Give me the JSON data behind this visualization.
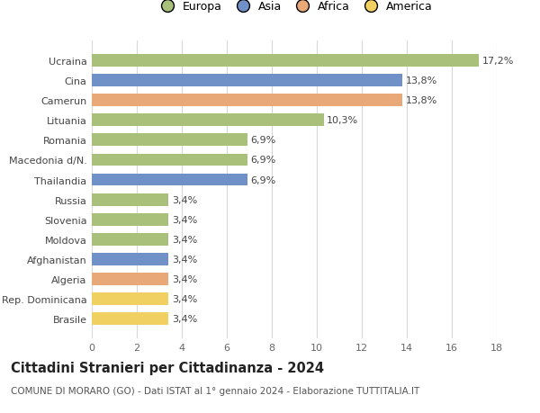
{
  "countries": [
    "Brasile",
    "Rep. Dominicana",
    "Algeria",
    "Afghanistan",
    "Moldova",
    "Slovenia",
    "Russia",
    "Thailandia",
    "Macedonia d/N.",
    "Romania",
    "Lituania",
    "Camerun",
    "Cina",
    "Ucraina"
  ],
  "values": [
    3.4,
    3.4,
    3.4,
    3.4,
    3.4,
    3.4,
    3.4,
    6.9,
    6.9,
    6.9,
    10.3,
    13.8,
    13.8,
    17.2
  ],
  "labels": [
    "3,4%",
    "3,4%",
    "3,4%",
    "3,4%",
    "3,4%",
    "3,4%",
    "3,4%",
    "6,9%",
    "6,9%",
    "6,9%",
    "10,3%",
    "13,8%",
    "13,8%",
    "17,2%"
  ],
  "continents": [
    "America",
    "America",
    "Africa",
    "Asia",
    "Europa",
    "Europa",
    "Europa",
    "Asia",
    "Europa",
    "Europa",
    "Europa",
    "Africa",
    "Asia",
    "Europa"
  ],
  "colors": {
    "Europa": "#a8c07a",
    "Asia": "#7090c8",
    "Africa": "#e8a878",
    "America": "#f0d060"
  },
  "legend_order": [
    "Europa",
    "Asia",
    "Africa",
    "America"
  ],
  "title_bold": "Cittadini Stranieri per Cittadinanza - 2024",
  "subtitle": "COMUNE DI MORARO (GO) - Dati ISTAT al 1° gennaio 2024 - Elaborazione TUTTITALIA.IT",
  "xlim": [
    0,
    18
  ],
  "xticks": [
    0,
    2,
    4,
    6,
    8,
    10,
    12,
    14,
    16,
    18
  ],
  "background_color": "#ffffff",
  "grid_color": "#d8d8d8",
  "bar_height": 0.62,
  "label_fontsize": 8.0,
  "tick_fontsize": 8.0,
  "legend_fontsize": 9.0,
  "title_fontsize": 10.5,
  "subtitle_fontsize": 7.5
}
